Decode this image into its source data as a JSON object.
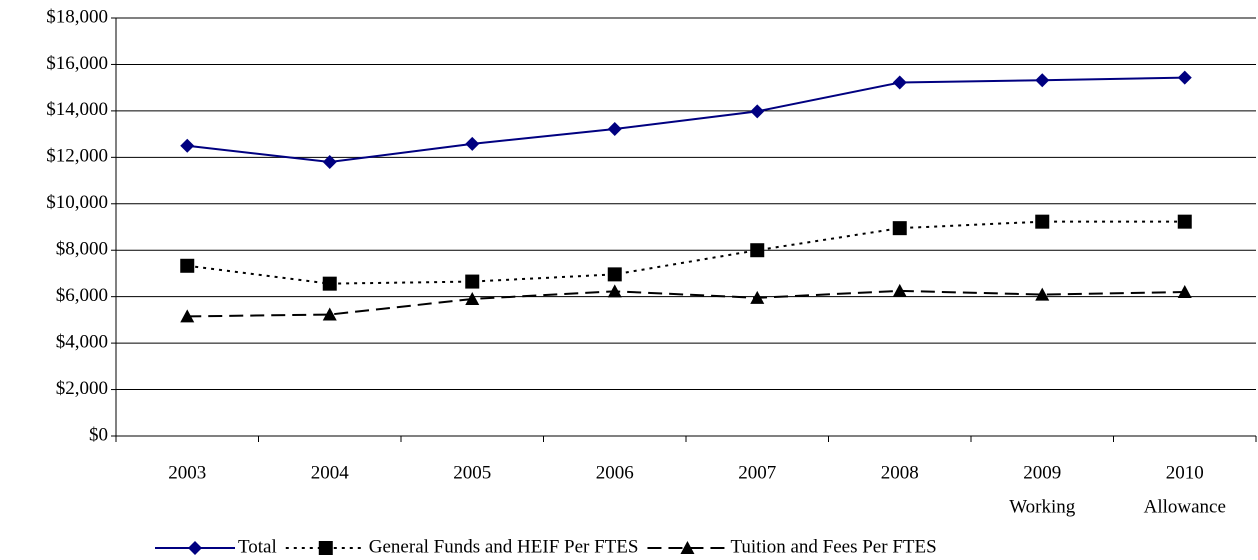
{
  "chart_data": {
    "type": "line",
    "categories": [
      "2003",
      "2004",
      "2005",
      "2006",
      "2007",
      "2008",
      "2009",
      "2010"
    ],
    "category_sublabels": [
      null,
      null,
      null,
      null,
      null,
      null,
      "Working",
      "Allowance"
    ],
    "series": [
      {
        "name": "Total",
        "color": "#000080",
        "dash": "solid",
        "marker": "diamond",
        "values": [
          12500,
          11800,
          12580,
          13220,
          13980,
          15220,
          15320,
          15430
        ]
      },
      {
        "name": "General Funds and HEIF Per FTES",
        "color": "#000000",
        "dash": "dotted",
        "marker": "square",
        "values": [
          7330,
          6560,
          6650,
          6960,
          8000,
          8950,
          9230,
          9230
        ]
      },
      {
        "name": "Tuition and Fees Per FTES",
        "color": "#000000",
        "dash": "dashed",
        "marker": "triangle",
        "values": [
          5150,
          5230,
          5900,
          6230,
          5950,
          6250,
          6090,
          6200
        ]
      }
    ],
    "ylim": [
      0,
      18000
    ],
    "yticks": [
      {
        "value": 0,
        "label": "$0"
      },
      {
        "value": 2000,
        "label": "$2,000"
      },
      {
        "value": 4000,
        "label": "$4,000"
      },
      {
        "value": 6000,
        "label": "$6,000"
      },
      {
        "value": 8000,
        "label": "$8,000"
      },
      {
        "value": 10000,
        "label": "$10,000"
      },
      {
        "value": 12000,
        "label": "$12,000"
      },
      {
        "value": 14000,
        "label": "$14,000"
      },
      {
        "value": 16000,
        "label": "$16,000"
      },
      {
        "value": 18000,
        "label": "$18,000"
      }
    ],
    "grid": true,
    "legend": "bottom"
  }
}
